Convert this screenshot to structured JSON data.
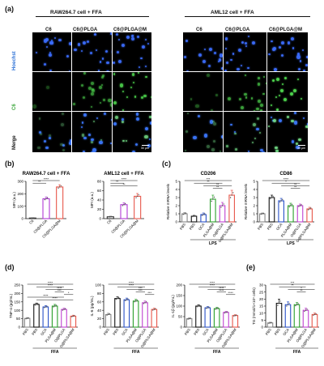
{
  "panel_a": {
    "label": "(a)",
    "group_left": "RAW264.7 cell + FFA",
    "group_right": "AML12 cell + FFA",
    "columns": [
      "C6",
      "C6@PLGA",
      "C6@PLGA@M"
    ],
    "rows": [
      "Hoechst",
      "C6",
      "Merge"
    ],
    "row_colors": [
      "#2a6fd6",
      "#3aa63a",
      "#111111"
    ],
    "scale_bar": "50 μm"
  },
  "panel_b": {
    "label": "(b)",
    "chart_data": [
      {
        "type": "bar",
        "title": "RAW264.7 cell + FFA",
        "ylabel": "MFI (a.u.)",
        "categories": [
          "C6",
          "C6@PLGA",
          "C6@PLGA@M"
        ],
        "values": [
          5,
          160,
          255
        ],
        "errors": [
          2,
          15,
          18
        ],
        "colors": [
          "#333333",
          "#b03ad6",
          "#e8564a"
        ],
        "ylim": [
          0,
          300
        ],
        "yticks": [
          "0",
          "100",
          "200",
          "300"
        ],
        "significance": [
          "****",
          "**"
        ]
      },
      {
        "type": "bar",
        "title": "AML12 cell + FFA",
        "ylabel": "MFI (a.u.)",
        "categories": [
          "C6",
          "C6@PLGA",
          "C6@PLGA@M"
        ],
        "values": [
          4,
          30,
          48
        ],
        "errors": [
          1,
          4,
          6
        ],
        "colors": [
          "#333333",
          "#b03ad6",
          "#e8564a"
        ],
        "ylim": [
          0,
          80
        ],
        "yticks": [
          "0",
          "20",
          "40",
          "60",
          "80"
        ],
        "significance": [
          "****",
          "**",
          "**"
        ]
      }
    ]
  },
  "panel_c": {
    "label": "(c)",
    "chart_data": [
      {
        "type": "bar",
        "title": "CD206",
        "ylabel": "Relative mRNA levels",
        "categories": [
          "PBS",
          "PBS",
          "OCA",
          "PLGA@M",
          "O@PLGA",
          "O@PLGA@M"
        ],
        "values": [
          1.0,
          0.7,
          0.9,
          2.8,
          2.0,
          3.3
        ],
        "errors": [
          0.15,
          0.1,
          0.2,
          0.5,
          0.4,
          0.6
        ],
        "colors": [
          "#888888",
          "#111111",
          "#2850c8",
          "#2aa02a",
          "#c040d0",
          "#e8564a"
        ],
        "ylim": [
          0,
          5
        ],
        "yticks": [
          "0",
          "1",
          "2",
          "3",
          "4",
          "5"
        ],
        "group_label": "LPS",
        "significance": [
          "***",
          "**",
          "**",
          "**"
        ]
      },
      {
        "type": "bar",
        "title": "CD86",
        "ylabel": "Relative mRNA levels",
        "categories": [
          "PBS",
          "PBS",
          "OCA",
          "PLGA@M",
          "O@PLGA",
          "O@PLGA@M"
        ],
        "values": [
          1.0,
          3.0,
          2.6,
          2.0,
          2.0,
          1.6
        ],
        "errors": [
          0.1,
          0.3,
          0.3,
          0.3,
          0.2,
          0.2
        ],
        "colors": [
          "#888888",
          "#111111",
          "#2850c8",
          "#2aa02a",
          "#c040d0",
          "#e8564a"
        ],
        "ylim": [
          0,
          5
        ],
        "yticks": [
          "0",
          "1",
          "2",
          "3",
          "4",
          "5"
        ],
        "group_label": "LPS",
        "significance": [
          "****",
          "*",
          "**",
          "**"
        ]
      }
    ]
  },
  "panel_d": {
    "label": "(d)",
    "chart_data": [
      {
        "type": "bar",
        "ylabel": "TNF-α (pg/mL)",
        "categories": [
          "PBS",
          "PBS",
          "OCA",
          "PLGA@M",
          "O@PLGA",
          "O@PLGA@M"
        ],
        "values": [
          52,
          135,
          120,
          125,
          105,
          65
        ],
        "errors": [
          5,
          8,
          8,
          10,
          8,
          6
        ],
        "colors": [
          "#888888",
          "#111111",
          "#2850c8",
          "#2aa02a",
          "#c040d0",
          "#e8564a"
        ],
        "ylim": [
          0,
          250
        ],
        "yticks": [
          "0",
          "50",
          "100",
          "150",
          "200",
          "250"
        ],
        "group_label": "FFA",
        "significance": [
          "****",
          "****",
          "****",
          "***",
          "*",
          "****",
          "****"
        ]
      },
      {
        "type": "bar",
        "ylabel": "IL-6 (pg/mL)",
        "categories": [
          "PBS",
          "PBS",
          "OCA",
          "PLGA@M",
          "O@PLGA",
          "O@PLGA@M"
        ],
        "values": [
          30,
          68,
          65,
          62,
          58,
          42
        ],
        "errors": [
          3,
          4,
          4,
          4,
          4,
          3
        ],
        "colors": [
          "#888888",
          "#111111",
          "#2850c8",
          "#2aa02a",
          "#c040d0",
          "#e8564a"
        ],
        "ylim": [
          0,
          100
        ],
        "yticks": [
          "0",
          "20",
          "40",
          "60",
          "80",
          "100"
        ],
        "group_label": "FFA",
        "significance": [
          "****",
          "****",
          "***",
          "***",
          "***"
        ]
      },
      {
        "type": "bar",
        "ylabel": "IL-1β (pg/mL)",
        "categories": [
          "PBS",
          "PBS",
          "OCA",
          "PLGA@M",
          "O@PLGA",
          "O@PLGA@M"
        ],
        "values": [
          40,
          100,
          92,
          88,
          70,
          55
        ],
        "errors": [
          4,
          6,
          6,
          6,
          5,
          4
        ],
        "colors": [
          "#888888",
          "#111111",
          "#2850c8",
          "#2aa02a",
          "#c040d0",
          "#e8564a"
        ],
        "ylim": [
          0,
          200
        ],
        "yticks": [
          "0",
          "50",
          "100",
          "150",
          "200"
        ],
        "group_label": "FFA",
        "significance": [
          "****",
          "****",
          "****",
          "****",
          "****"
        ]
      }
    ]
  },
  "panel_e": {
    "label": "(e)",
    "chart_data": {
      "type": "bar",
      "ylabel": "TG (mmol/1×10⁶ cells)",
      "categories": [
        "PBS",
        "PBS",
        "OCA",
        "PLGA@M",
        "O@PLGA",
        "O@PLGA@M"
      ],
      "values": [
        3,
        17,
        16,
        16,
        12,
        9
      ],
      "errors": [
        0.5,
        3,
        2,
        1.5,
        1.5,
        1
      ],
      "colors": [
        "#888888",
        "#111111",
        "#2850c8",
        "#2aa02a",
        "#c040d0",
        "#e8564a"
      ],
      "ylim": [
        0,
        30
      ],
      "yticks": [
        "0",
        "5",
        "10",
        "15",
        "20",
        "25",
        "30"
      ],
      "group_label": "FFA",
      "significance": [
        "***",
        "**",
        "*",
        "**"
      ]
    }
  }
}
